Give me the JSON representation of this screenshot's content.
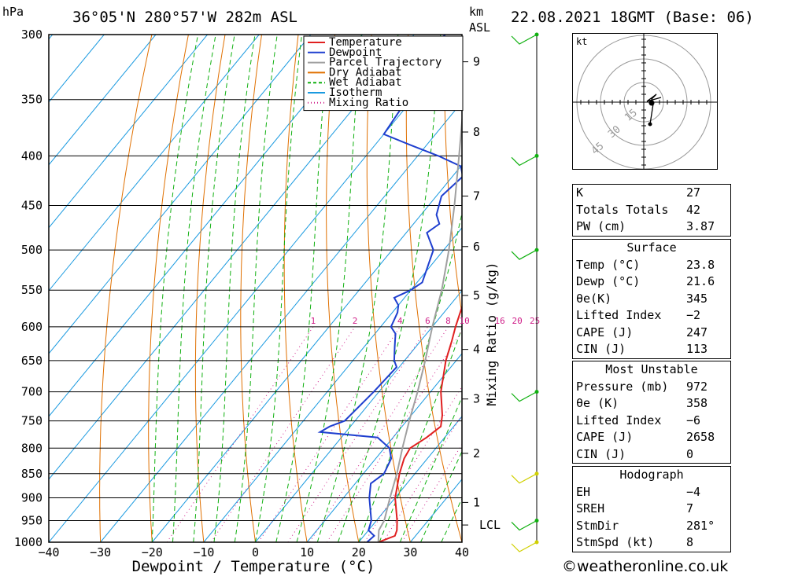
{
  "header": {
    "pressure_unit": "hPa",
    "location": "36°05'N  280°57'W  282m  ASL",
    "height_unit_line1": "km",
    "height_unit_line2": "ASL",
    "datetime": "22.08.2021  18GMT  (Base: 06)"
  },
  "footer": {
    "copyright": "©weatheronline.co.uk"
  },
  "chart_data": {
    "type": "line",
    "xlabel": "Dewpoint / Temperature (°C)",
    "mixing_label": "Mixing Ratio (g/kg)",
    "xlim": [
      -40,
      40
    ],
    "ylim": [
      1000,
      300
    ],
    "x_ticks": [
      "−40",
      "−30",
      "−20",
      "−10",
      "0",
      "10",
      "20",
      "30",
      "40"
    ],
    "x_tick_values": [
      -40,
      -30,
      -20,
      -10,
      0,
      10,
      20,
      30,
      40
    ],
    "pressure_levels": [
      300,
      350,
      400,
      450,
      500,
      550,
      600,
      650,
      700,
      750,
      800,
      850,
      900,
      950,
      1000
    ],
    "km_ticks": [
      {
        "label": "1",
        "p": 910
      },
      {
        "label": "2",
        "p": 810
      },
      {
        "label": "3",
        "p": 712
      },
      {
        "label": "4",
        "p": 633
      },
      {
        "label": "5",
        "p": 557
      },
      {
        "label": "6",
        "p": 496
      },
      {
        "label": "7",
        "p": 440
      },
      {
        "label": "8",
        "p": 378
      },
      {
        "label": "9",
        "p": 320
      }
    ],
    "lcl_label": "LCL",
    "lcl_pressure": 960,
    "mixing_ratios": [
      {
        "label": "1",
        "value": 1
      },
      {
        "label": "2",
        "value": 2
      },
      {
        "label": "4",
        "value": 4
      },
      {
        "label": "6",
        "value": 6
      },
      {
        "label": "8",
        "value": 8
      },
      {
        "label": "10",
        "value": 10
      },
      {
        "label": "16",
        "value": 16
      },
      {
        "label": "20",
        "value": 20
      },
      {
        "label": "25",
        "value": 25
      }
    ],
    "legend": [
      {
        "name": "Temperature",
        "color": "#e02020",
        "style": "solid"
      },
      {
        "name": "Dewpoint",
        "color": "#1f3fcf",
        "style": "solid"
      },
      {
        "name": "Parcel Trajectory",
        "color": "#a0a0a0",
        "style": "solid"
      },
      {
        "name": "Dry Adiabat",
        "color": "#e07000",
        "style": "solid"
      },
      {
        "name": "Wet Adiabat",
        "color": "#10b010",
        "style": "dashed"
      },
      {
        "name": "Isotherm",
        "color": "#1a9ae0",
        "style": "solid"
      },
      {
        "name": "Mixing Ratio",
        "color": "#d0208a",
        "style": "dotted"
      }
    ],
    "series": [
      {
        "name": "Temperature",
        "color": "#e02020",
        "points": [
          [
            1000,
            23.8
          ],
          [
            985,
            26
          ],
          [
            972,
            25.5
          ],
          [
            950,
            24
          ],
          [
            900,
            20
          ],
          [
            850,
            17
          ],
          [
            820,
            15.5
          ],
          [
            800,
            15
          ],
          [
            780,
            16.5
          ],
          [
            760,
            17.5
          ],
          [
            740,
            16
          ],
          [
            700,
            12
          ],
          [
            650,
            8
          ],
          [
            620,
            6
          ],
          [
            600,
            4.5
          ],
          [
            550,
            1
          ],
          [
            500,
            -4
          ],
          [
            470,
            -7
          ],
          [
            450,
            -9
          ],
          [
            430,
            -12
          ],
          [
            400,
            -17
          ],
          [
            380,
            -21
          ],
          [
            360,
            -25
          ],
          [
            350,
            -27
          ],
          [
            320,
            -33
          ],
          [
            300,
            -36
          ]
        ]
      },
      {
        "name": "Dewpoint",
        "color": "#1f3fcf",
        "points": [
          [
            1000,
            21.6
          ],
          [
            985,
            22
          ],
          [
            972,
            20
          ],
          [
            950,
            19
          ],
          [
            900,
            15
          ],
          [
            870,
            13
          ],
          [
            850,
            14
          ],
          [
            820,
            13
          ],
          [
            800,
            11
          ],
          [
            780,
            7
          ],
          [
            770,
            -5
          ],
          [
            760,
            -4
          ],
          [
            750,
            -2
          ],
          [
            700,
            -1
          ],
          [
            660,
            -0.5
          ],
          [
            650,
            -2
          ],
          [
            630,
            -4
          ],
          [
            620,
            -5
          ],
          [
            610,
            -6
          ],
          [
            600,
            -8
          ],
          [
            580,
            -9
          ],
          [
            570,
            -10
          ],
          [
            560,
            -12
          ],
          [
            550,
            -10
          ],
          [
            540,
            -9
          ],
          [
            500,
            -12
          ],
          [
            480,
            -16
          ],
          [
            470,
            -15
          ],
          [
            460,
            -17
          ],
          [
            440,
            -19
          ],
          [
            420,
            -18
          ],
          [
            410,
            -20
          ],
          [
            400,
            -26
          ],
          [
            390,
            -33
          ],
          [
            380,
            -40
          ],
          [
            350,
            -41
          ],
          [
            320,
            -42
          ],
          [
            310,
            -44
          ],
          [
            300,
            -44
          ]
        ]
      },
      {
        "name": "Parcel Trajectory",
        "color": "#a0a0a0",
        "points": [
          [
            1000,
            23.8
          ],
          [
            972,
            22
          ],
          [
            950,
            21.5
          ],
          [
            900,
            19
          ],
          [
            850,
            16.5
          ],
          [
            800,
            13.5
          ],
          [
            750,
            10.5
          ],
          [
            700,
            7.5
          ],
          [
            650,
            4
          ],
          [
            600,
            0
          ],
          [
            550,
            -4
          ],
          [
            500,
            -9
          ],
          [
            450,
            -15
          ],
          [
            400,
            -22
          ],
          [
            350,
            -30
          ],
          [
            300,
            -40
          ]
        ]
      }
    ],
    "wind_barbs": [
      {
        "p": 1000,
        "color": "#d0d000"
      },
      {
        "p": 950,
        "color": "#10b010"
      },
      {
        "p": 850,
        "color": "#d0d000"
      },
      {
        "p": 700,
        "color": "#10b010"
      },
      {
        "p": 500,
        "color": "#10b010"
      },
      {
        "p": 400,
        "color": "#10b010"
      },
      {
        "p": 300,
        "color": "#10b010"
      }
    ]
  },
  "hodograph": {
    "unit": "kt",
    "ring_labels": [
      "15",
      "30",
      "45"
    ]
  },
  "indices": {
    "rows": [
      {
        "k": "K",
        "v": "27"
      },
      {
        "k": "Totals Totals",
        "v": "42"
      },
      {
        "k": "PW (cm)",
        "v": "3.87"
      }
    ]
  },
  "surface": {
    "title": "Surface",
    "rows": [
      {
        "k": "Temp (°C)",
        "v": "23.8"
      },
      {
        "k": "Dewp (°C)",
        "v": "21.6"
      },
      {
        "k": "θe(K)",
        "v": "345"
      },
      {
        "k": "Lifted Index",
        "v": "−2"
      },
      {
        "k": "CAPE (J)",
        "v": "247"
      },
      {
        "k": "CIN (J)",
        "v": "113"
      }
    ]
  },
  "most_unstable": {
    "title": "Most Unstable",
    "rows": [
      {
        "k": "Pressure (mb)",
        "v": "972"
      },
      {
        "k": "θe (K)",
        "v": "358"
      },
      {
        "k": "Lifted Index",
        "v": "−6"
      },
      {
        "k": "CAPE (J)",
        "v": "2658"
      },
      {
        "k": "CIN (J)",
        "v": "0"
      }
    ]
  },
  "hodo_params": {
    "title": "Hodograph",
    "rows": [
      {
        "k": "EH",
        "v": "−4"
      },
      {
        "k": "SREH",
        "v": "7"
      },
      {
        "k": "StmDir",
        "v": "281°"
      },
      {
        "k": "StmSpd (kt)",
        "v": "8"
      }
    ]
  }
}
